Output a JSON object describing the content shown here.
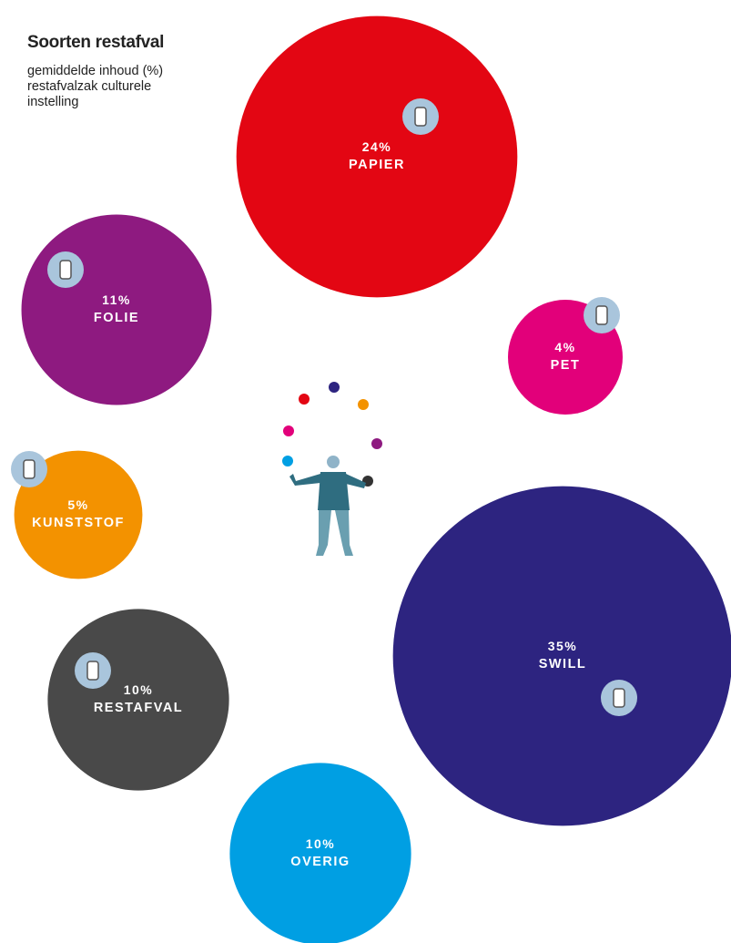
{
  "chart_data": {
    "type": "bubble",
    "title": "Soorten restafval",
    "subtitle": "gemiddelde inhoud (%) restafvalzak culturele instelling",
    "categories": [
      "PAPIER",
      "FOLIE",
      "PET",
      "KUNSTSTOF",
      "RESTAFVAL",
      "SWILL",
      "OVERIG"
    ],
    "values": [
      24,
      11,
      4,
      5,
      10,
      35,
      10
    ],
    "value_labels": [
      "24%",
      "11%",
      "4%",
      "5%",
      "10%",
      "35%",
      "10%"
    ],
    "colors": [
      "#e30613",
      "#8e1a80",
      "#e2007a",
      "#f39200",
      "#494949",
      "#2d2480",
      "#009fe3"
    ]
  }
}
